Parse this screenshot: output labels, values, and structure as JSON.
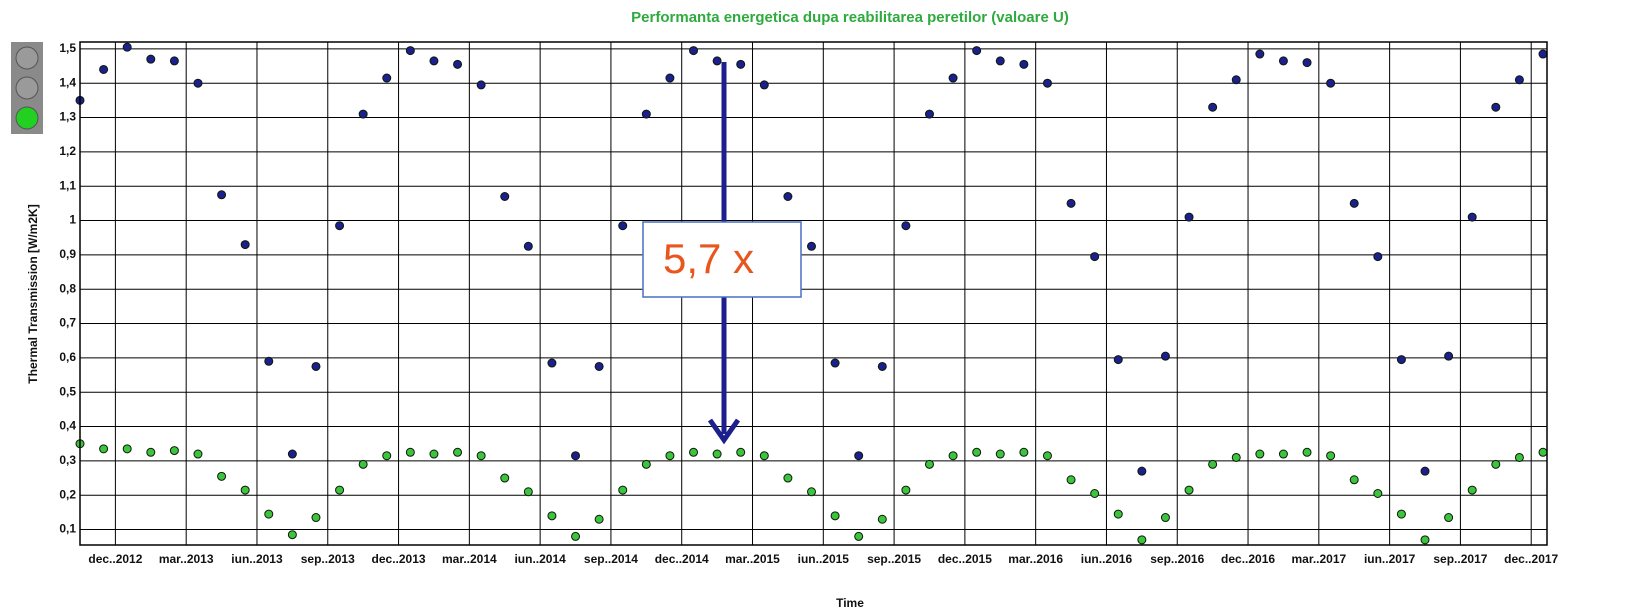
{
  "chart_data": {
    "type": "scatter",
    "title": "Performanta energetica dupa reabilitarea peretilor (valoare U)",
    "ylabel": "Thermal Transmission [W/m2K]",
    "xlabel": "Time",
    "annotation": "5,7 x",
    "x": [
      "2012-10",
      "2012-11",
      "2012-12",
      "2013-01",
      "2013-02",
      "2013-03",
      "2013-04",
      "2013-05",
      "2013-06",
      "2013-07",
      "2013-08",
      "2013-09",
      "2013-10",
      "2013-11",
      "2013-12",
      "2014-01",
      "2014-02",
      "2014-03",
      "2014-04",
      "2014-05",
      "2014-06",
      "2014-07",
      "2014-08",
      "2014-09",
      "2014-10",
      "2014-11",
      "2014-12",
      "2015-01",
      "2015-02",
      "2015-03",
      "2015-04",
      "2015-05",
      "2015-06",
      "2015-07",
      "2015-08",
      "2015-09",
      "2015-10",
      "2015-11",
      "2015-12",
      "2016-01",
      "2016-02",
      "2016-03",
      "2016-04",
      "2016-05",
      "2016-06",
      "2016-07",
      "2016-08",
      "2016-09",
      "2016-10",
      "2016-11",
      "2016-12",
      "2017-01",
      "2017-02",
      "2017-03",
      "2017-04",
      "2017-05",
      "2017-06",
      "2017-07",
      "2017-08",
      "2017-09",
      "2017-10",
      "2017-11",
      "2017-12"
    ],
    "series": [
      {
        "color": "#1c1f8c",
        "values": [
          1.35,
          1.44,
          1.505,
          1.47,
          1.465,
          1.4,
          1.075,
          0.93,
          0.59,
          0.32,
          0.575,
          0.985,
          1.31,
          1.415,
          1.495,
          1.465,
          1.455,
          1.395,
          1.07,
          0.925,
          0.585,
          0.315,
          0.575,
          0.985,
          1.31,
          1.415,
          1.495,
          1.465,
          1.455,
          1.395,
          1.07,
          0.925,
          0.585,
          0.315,
          0.575,
          0.985,
          1.31,
          1.415,
          1.495,
          1.465,
          1.455,
          1.4,
          1.05,
          0.895,
          0.595,
          0.27,
          0.605,
          1.01,
          1.33,
          1.41,
          1.485,
          1.465,
          1.46,
          1.4,
          1.05,
          0.895,
          0.595,
          0.27,
          0.605,
          1.01,
          1.33,
          1.41,
          1.485
        ]
      },
      {
        "color": "#3cc43c",
        "values": [
          0.35,
          0.335,
          0.335,
          0.325,
          0.33,
          0.32,
          0.255,
          0.215,
          0.145,
          0.085,
          0.135,
          0.215,
          0.29,
          0.315,
          0.325,
          0.32,
          0.325,
          0.315,
          0.25,
          0.21,
          0.14,
          0.08,
          0.13,
          0.215,
          0.29,
          0.315,
          0.325,
          0.32,
          0.325,
          0.315,
          0.25,
          0.21,
          0.14,
          0.08,
          0.13,
          0.215,
          0.29,
          0.315,
          0.325,
          0.32,
          0.325,
          0.315,
          0.245,
          0.205,
          0.145,
          0.07,
          0.135,
          0.215,
          0.29,
          0.31,
          0.32,
          0.32,
          0.325,
          0.315,
          0.245,
          0.205,
          0.145,
          0.07,
          0.135,
          0.215,
          0.29,
          0.31,
          0.325
        ]
      }
    ],
    "xlim": [
      "2012-10",
      "2017-12"
    ],
    "xticks": [
      {
        "value": "2012-12",
        "label": "dec..2012"
      },
      {
        "value": "2013-03",
        "label": "mar..2013"
      },
      {
        "value": "2013-06",
        "label": "iun..2013"
      },
      {
        "value": "2013-09",
        "label": "sep..2013"
      },
      {
        "value": "2013-12",
        "label": "dec..2013"
      },
      {
        "value": "2014-03",
        "label": "mar..2014"
      },
      {
        "value": "2014-06",
        "label": "iun..2014"
      },
      {
        "value": "2014-09",
        "label": "sep..2014"
      },
      {
        "value": "2014-12",
        "label": "dec..2014"
      },
      {
        "value": "2015-03",
        "label": "mar..2015"
      },
      {
        "value": "2015-06",
        "label": "iun..2015"
      },
      {
        "value": "2015-09",
        "label": "sep..2015"
      },
      {
        "value": "2015-12",
        "label": "dec..2015"
      },
      {
        "value": "2016-03",
        "label": "mar..2016"
      },
      {
        "value": "2016-06",
        "label": "iun..2016"
      },
      {
        "value": "2016-09",
        "label": "sep..2016"
      },
      {
        "value": "2016-12",
        "label": "dec..2016"
      },
      {
        "value": "2017-03",
        "label": "mar..2017"
      },
      {
        "value": "2017-06",
        "label": "iun..2017"
      },
      {
        "value": "2017-09",
        "label": "sep..2017"
      },
      {
        "value": "2017-12",
        "label": "dec..2017"
      }
    ],
    "ylim": [
      0.055,
      1.52
    ],
    "yticks": [
      {
        "value": 0.1,
        "label": "0,1"
      },
      {
        "value": 0.2,
        "label": "0,2"
      },
      {
        "value": 0.3,
        "label": "0,3"
      },
      {
        "value": 0.4,
        "label": "0,4"
      },
      {
        "value": 0.5,
        "label": "0,5"
      },
      {
        "value": 0.6,
        "label": "0,6"
      },
      {
        "value": 0.7,
        "label": "0,7"
      },
      {
        "value": 0.8,
        "label": "0,8"
      },
      {
        "value": 0.9,
        "label": "0,9"
      },
      1,
      {
        "value": 1.1,
        "label": "1,1"
      },
      {
        "value": 1.2,
        "label": "1,2"
      },
      {
        "value": 1.3,
        "label": "1,3"
      },
      {
        "value": 1.4,
        "label": "1,4"
      },
      {
        "value": 1.5,
        "label": "1,5"
      }
    ],
    "grid": true
  }
}
